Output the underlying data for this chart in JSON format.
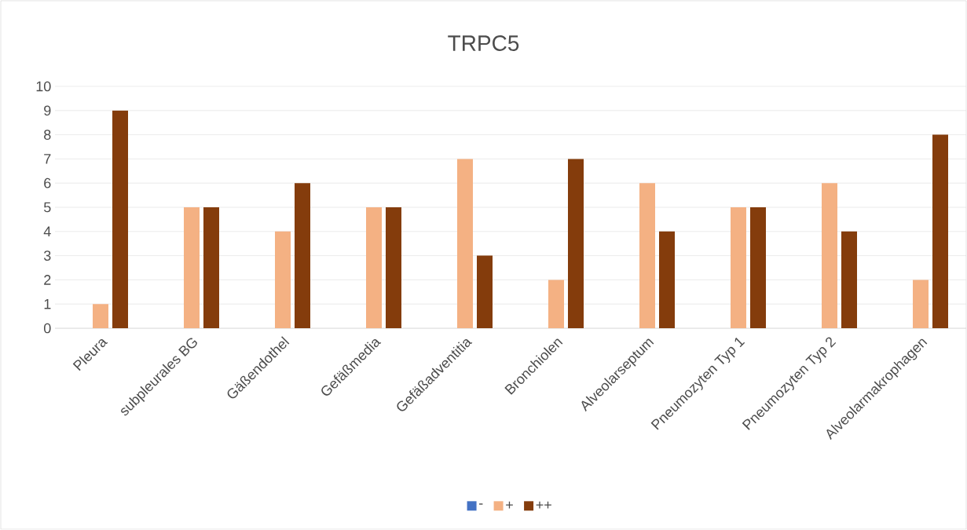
{
  "chart_data": {
    "type": "bar",
    "title": "TRPC5",
    "categories": [
      "Pleura",
      "subpleurales BG",
      "Gäßendothel",
      "Gefäßmedia",
      "Gefäßadventitia",
      "Bronchiolen",
      "Alveolarseptum",
      "Pneumozyten Typ 1",
      "Pneumozyten Typ 2",
      "Alveolarmakrophagen"
    ],
    "series": [
      {
        "name": "-",
        "color": "#4472c4",
        "values": [
          0,
          0,
          0,
          0,
          0,
          0,
          0,
          0,
          0,
          0
        ]
      },
      {
        "name": "+",
        "color": "#f4b183",
        "values": [
          1,
          5,
          4,
          5,
          7,
          2,
          6,
          5,
          6,
          2
        ]
      },
      {
        "name": "++",
        "color": "#843c0c",
        "values": [
          9,
          5,
          6,
          5,
          3,
          7,
          4,
          5,
          4,
          8
        ]
      }
    ],
    "ylim": [
      0,
      10
    ],
    "yticks": [
      0,
      1,
      2,
      3,
      4,
      5,
      6,
      7,
      8,
      9,
      10
    ],
    "grid": "y",
    "legend": "bottom"
  }
}
